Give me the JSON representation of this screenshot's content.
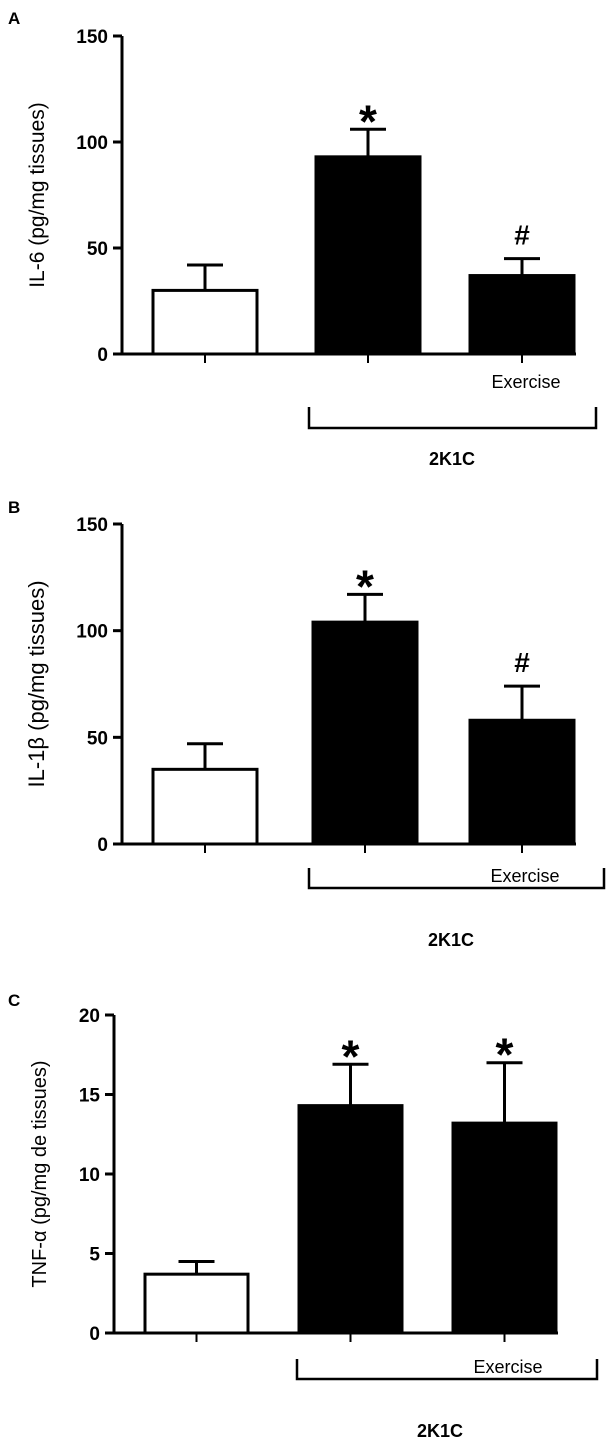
{
  "chart_data": [
    {
      "panel_label": "A",
      "type": "bar",
      "ylabel": "IL-6 (pg/mg tissues)",
      "ylim": [
        0,
        150
      ],
      "yticks": [
        "0",
        "50",
        "100",
        "150"
      ],
      "bars": [
        {
          "value": 30,
          "error": 12,
          "fill": "#ffffff",
          "annotation": ""
        },
        {
          "value": 93,
          "error": 13,
          "fill": "#000000",
          "annotation": "*"
        },
        {
          "value": 37,
          "error": 8,
          "fill": "#000000",
          "annotation": "#"
        }
      ],
      "exercise_label": "Exercise",
      "group_label": "2K1C"
    },
    {
      "panel_label": "B",
      "type": "bar",
      "ylabel": "IL-1β (pg/mg tissues)",
      "ylim": [
        0,
        150
      ],
      "yticks": [
        "0",
        "50",
        "100",
        "150"
      ],
      "bars": [
        {
          "value": 35,
          "error": 12,
          "fill": "#ffffff",
          "annotation": ""
        },
        {
          "value": 104,
          "error": 13,
          "fill": "#000000",
          "annotation": "*"
        },
        {
          "value": 58,
          "error": 16,
          "fill": "#000000",
          "annotation": "#"
        }
      ],
      "exercise_label": "Exercise",
      "group_label": "2K1C"
    },
    {
      "panel_label": "C",
      "type": "bar",
      "ylabel": "TNF-α (pg/mg de tissues)",
      "ylim": [
        0,
        20
      ],
      "yticks": [
        "0",
        "5",
        "10",
        "15",
        "20"
      ],
      "bars": [
        {
          "value": 3.7,
          "error": 0.8,
          "fill": "#ffffff",
          "annotation": ""
        },
        {
          "value": 14.3,
          "error": 2.6,
          "fill": "#000000",
          "annotation": "*"
        },
        {
          "value": 13.2,
          "error": 3.8,
          "fill": "#000000",
          "annotation": "*"
        }
      ],
      "exercise_label": "Exercise",
      "group_label": "2K1C"
    }
  ]
}
